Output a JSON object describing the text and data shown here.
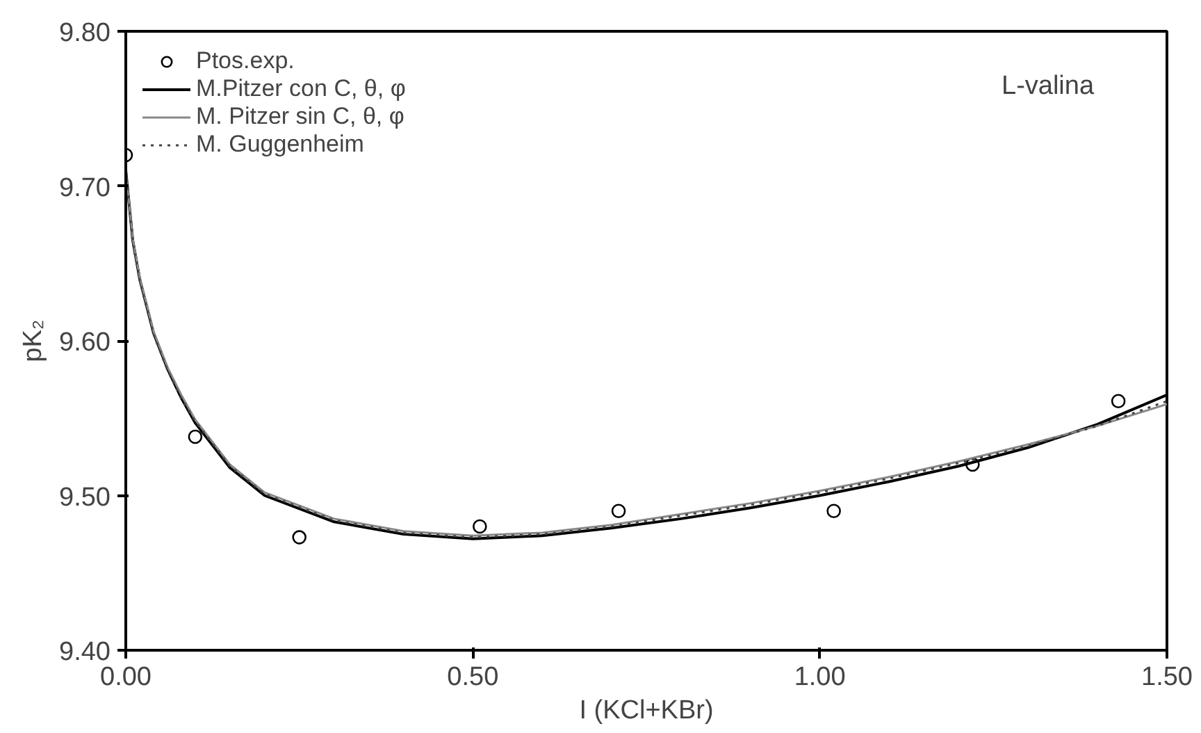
{
  "chart_data": {
    "type": "line",
    "xlabel": "I (KCl+KBr)",
    "ylabel": "pK₂",
    "xlim": [
      0,
      1.5
    ],
    "ylim": [
      9.4,
      9.8
    ],
    "xticks": [
      {
        "value": 0,
        "label": "0.00"
      },
      {
        "value": 0.5,
        "label": "0.50"
      },
      {
        "value": 1.0,
        "label": "1.00"
      },
      {
        "value": 1.5,
        "label": "1.50"
      }
    ],
    "yticks": [
      {
        "value": 9.4,
        "label": "9.40"
      },
      {
        "value": 9.5,
        "label": "9.50"
      },
      {
        "value": 9.6,
        "label": "9.60"
      },
      {
        "value": 9.7,
        "label": "9.70"
      },
      {
        "value": 9.8,
        "label": "9.80"
      }
    ],
    "grid": false,
    "legend": "top left",
    "annotations": [
      "L-valina"
    ],
    "series": [
      {
        "name": "Ptos.exp.",
        "type": "scatter",
        "marker": "circle",
        "color": "#000000",
        "x": [
          0,
          0.1,
          0.25,
          0.51,
          0.71,
          1.02,
          1.22,
          1.43
        ],
        "values": [
          9.72,
          9.538,
          9.473,
          9.48,
          9.49,
          9.49,
          9.52,
          9.561
        ]
      },
      {
        "name": "M.Pitzer con C, θ, φ",
        "line_style": "solid",
        "color": "#000000",
        "x": [
          0,
          0.01,
          0.02,
          0.04,
          0.06,
          0.08,
          0.1,
          0.15,
          0.2,
          0.3,
          0.4,
          0.5,
          0.6,
          0.7,
          0.8,
          0.9,
          1.0,
          1.1,
          1.2,
          1.3,
          1.4,
          1.5
        ],
        "values": [
          9.71,
          9.665,
          9.64,
          9.605,
          9.582,
          9.563,
          9.547,
          9.518,
          9.5,
          9.483,
          9.475,
          9.472,
          9.474,
          9.479,
          9.485,
          9.492,
          9.5,
          9.509,
          9.519,
          9.531,
          9.546,
          9.565
        ]
      },
      {
        "name": "M. Pitzer sin C, θ, φ",
        "line_style": "solid",
        "color": "#888888",
        "x": [
          0,
          0.01,
          0.02,
          0.04,
          0.06,
          0.08,
          0.1,
          0.15,
          0.2,
          0.3,
          0.4,
          0.5,
          0.6,
          0.7,
          0.8,
          0.9,
          1.0,
          1.1,
          1.2,
          1.3,
          1.4,
          1.5
        ],
        "values": [
          9.71,
          9.666,
          9.641,
          9.606,
          9.583,
          9.565,
          9.549,
          9.52,
          9.502,
          9.485,
          9.477,
          9.474,
          9.476,
          9.481,
          9.488,
          9.495,
          9.503,
          9.512,
          9.522,
          9.533,
          9.545,
          9.559
        ]
      },
      {
        "name": "M. Guggenheim",
        "line_style": "dotted",
        "color": "#444444",
        "x": [
          0,
          0.01,
          0.02,
          0.04,
          0.06,
          0.08,
          0.1,
          0.15,
          0.2,
          0.3,
          0.4,
          0.5,
          0.6,
          0.7,
          0.8,
          0.9,
          1.0,
          1.1,
          1.2,
          1.3,
          1.4,
          1.5
        ],
        "values": [
          9.71,
          9.664,
          9.639,
          9.604,
          9.581,
          9.563,
          9.548,
          9.519,
          9.501,
          9.484,
          9.476,
          9.473,
          9.475,
          9.48,
          9.487,
          9.494,
          9.502,
          9.511,
          9.521,
          9.532,
          9.545,
          9.561
        ]
      }
    ]
  }
}
